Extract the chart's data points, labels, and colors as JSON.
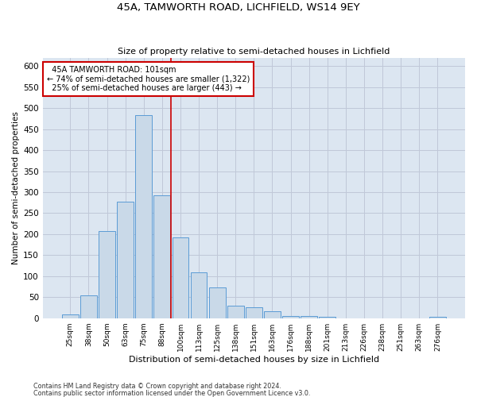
{
  "title1": "45A, TAMWORTH ROAD, LICHFIELD, WS14 9EY",
  "title2": "Size of property relative to semi-detached houses in Lichfield",
  "xlabel": "Distribution of semi-detached houses by size in Lichfield",
  "ylabel": "Number of semi-detached properties",
  "footnote1": "Contains HM Land Registry data © Crown copyright and database right 2024.",
  "footnote2": "Contains public sector information licensed under the Open Government Licence v3.0.",
  "categories": [
    "25sqm",
    "38sqm",
    "50sqm",
    "63sqm",
    "75sqm",
    "88sqm",
    "100sqm",
    "113sqm",
    "125sqm",
    "138sqm",
    "151sqm",
    "163sqm",
    "176sqm",
    "188sqm",
    "201sqm",
    "213sqm",
    "226sqm",
    "238sqm",
    "251sqm",
    "263sqm",
    "276sqm"
  ],
  "values": [
    8,
    55,
    207,
    277,
    483,
    293,
    193,
    110,
    73,
    30,
    25,
    16,
    5,
    5,
    3,
    0,
    0,
    0,
    0,
    0,
    3
  ],
  "bar_color": "#c9d9e8",
  "bar_edge_color": "#5b9bd5",
  "grid_color": "#c0c8d8",
  "background_color": "#dce6f1",
  "property_label": "45A TAMWORTH ROAD: 101sqm",
  "pct_smaller": 74,
  "n_smaller": 1322,
  "pct_larger": 25,
  "n_larger": 443,
  "vline_x_index": 5.5,
  "annotation_box_color": "#ffffff",
  "annotation_box_edge": "#cc0000",
  "ylim": [
    0,
    620
  ],
  "yticks": [
    0,
    50,
    100,
    150,
    200,
    250,
    300,
    350,
    400,
    450,
    500,
    550,
    600
  ]
}
